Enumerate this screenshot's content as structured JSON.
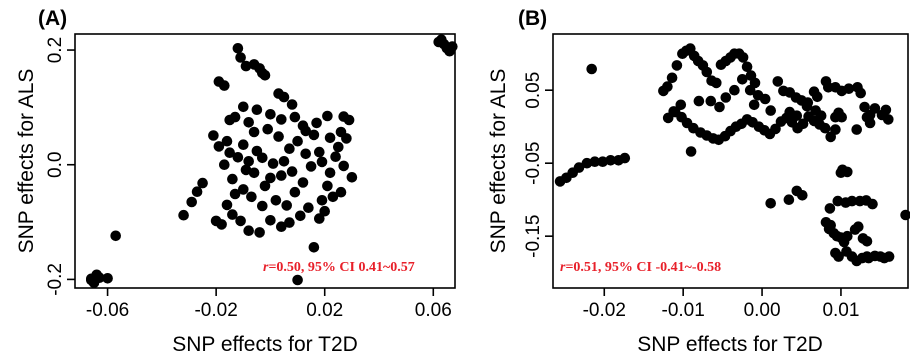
{
  "chart_data": [
    {
      "type": "scatter",
      "panel": "(A)",
      "xlabel": "SNP effects for T2D",
      "ylabel": "SNP effects for ALS",
      "xlim": [
        -0.072,
        0.068
      ],
      "ylim": [
        -0.215,
        0.228
      ],
      "xticks": [
        -0.06,
        -0.02,
        0.02,
        0.06
      ],
      "xtick_labels": [
        "-0.06",
        "-0.02",
        "0.02",
        "0.06"
      ],
      "yticks": [
        -0.2,
        0.0,
        0.2
      ],
      "ytick_labels": [
        "-0.2",
        "0.0",
        "0.2"
      ],
      "annotation": {
        "italic": "r",
        "rest": "=0.50, 95% CI 0.41~0.57",
        "color": "#e8202a"
      },
      "series": [
        {
          "color": "#000000",
          "points": [
            [
              -0.066,
              -0.199
            ],
            [
              -0.065,
              -0.206
            ],
            [
              -0.064,
              -0.192
            ],
            [
              -0.066,
              -0.201
            ],
            [
              -0.063,
              -0.197
            ],
            [
              -0.06,
              -0.198
            ],
            [
              -0.057,
              -0.124
            ],
            [
              -0.032,
              -0.088
            ],
            [
              -0.029,
              -0.065
            ],
            [
              -0.027,
              -0.047
            ],
            [
              -0.025,
              -0.032
            ],
            [
              -0.02,
              -0.098
            ],
            [
              -0.018,
              -0.104
            ],
            [
              -0.016,
              -0.07
            ],
            [
              -0.012,
              0.203
            ],
            [
              -0.011,
              0.187
            ],
            [
              -0.009,
              0.172
            ],
            [
              -0.006,
              0.175
            ],
            [
              -0.004,
              0.168
            ],
            [
              -0.003,
              0.16
            ],
            [
              -0.002,
              0.156
            ],
            [
              -0.019,
              0.145
            ],
            [
              -0.017,
              0.138
            ],
            [
              0.003,
              0.124
            ],
            [
              0.005,
              0.118
            ],
            [
              0.008,
              0.105
            ],
            [
              -0.01,
              0.101
            ],
            [
              -0.005,
              0.096
            ],
            [
              -0.015,
              0.078
            ],
            [
              -0.013,
              0.083
            ],
            [
              -0.008,
              0.074
            ],
            [
              0.0,
              0.088
            ],
            [
              0.004,
              0.079
            ],
            [
              0.009,
              0.083
            ],
            [
              0.012,
              0.068
            ],
            [
              0.017,
              0.073
            ],
            [
              0.021,
              0.085
            ],
            [
              0.027,
              0.084
            ],
            [
              0.029,
              0.078
            ],
            [
              0.026,
              0.057
            ],
            [
              0.028,
              0.046
            ],
            [
              0.025,
              0.031
            ],
            [
              0.024,
              0.014
            ],
            [
              0.027,
              -0.002
            ],
            [
              0.03,
              -0.022
            ],
            [
              0.026,
              -0.048
            ],
            [
              0.021,
              -0.037
            ],
            [
              0.019,
              -0.062
            ],
            [
              0.018,
              -0.094
            ],
            [
              0.016,
              -0.144
            ],
            [
              0.01,
              -0.201
            ],
            [
              0.004,
              -0.108
            ],
            [
              0.0,
              -0.097
            ],
            [
              -0.004,
              -0.118
            ],
            [
              -0.008,
              -0.115
            ],
            [
              -0.011,
              -0.098
            ],
            [
              -0.014,
              -0.087
            ],
            [
              -0.013,
              -0.051
            ],
            [
              -0.019,
              0.032
            ],
            [
              -0.021,
              0.051
            ],
            [
              -0.016,
              0.041
            ],
            [
              -0.009,
              -0.009
            ],
            [
              -0.006,
              -0.014
            ],
            [
              -0.003,
              0.012
            ],
            [
              0.001,
              0.002
            ],
            [
              0.004,
              -0.019
            ],
            [
              0.007,
              0.028
            ],
            [
              0.01,
              0.041
            ],
            [
              0.013,
              0.019
            ],
            [
              0.015,
              -0.003
            ],
            [
              0.018,
              0.022
            ],
            [
              -0.012,
              0.013
            ],
            [
              -0.017,
              0.0
            ],
            [
              -0.014,
              -0.025
            ],
            [
              -0.01,
              -0.043
            ],
            [
              -0.007,
              -0.056
            ],
            [
              -0.002,
              -0.037
            ],
            [
              0.002,
              -0.062
            ],
            [
              0.006,
              -0.071
            ],
            [
              0.009,
              -0.048
            ],
            [
              0.012,
              -0.031
            ],
            [
              0.014,
              -0.075
            ],
            [
              0.011,
              -0.089
            ],
            [
              0.007,
              -0.101
            ],
            [
              -0.001,
              0.062
            ],
            [
              0.003,
              0.049
            ],
            [
              -0.006,
              0.057
            ],
            [
              -0.01,
              0.035
            ],
            [
              0.016,
              0.052
            ],
            [
              0.019,
              0.005
            ],
            [
              0.022,
              -0.014
            ],
            [
              -0.005,
              0.024
            ],
            [
              0.0,
              -0.023
            ],
            [
              0.005,
              0.006
            ],
            [
              -0.008,
              0.006
            ],
            [
              0.008,
              -0.012
            ],
            [
              -0.003,
              -0.072
            ],
            [
              0.013,
              0.059
            ],
            [
              0.02,
              -0.081
            ],
            [
              -0.015,
              0.021
            ],
            [
              0.022,
              0.047
            ],
            [
              0.023,
              -0.056
            ],
            [
              0.063,
              0.218
            ],
            [
              0.064,
              0.21
            ],
            [
              0.065,
              0.203
            ],
            [
              0.062,
              0.214
            ],
            [
              0.066,
              0.198
            ],
            [
              0.067,
              0.206
            ]
          ]
        }
      ]
    },
    {
      "type": "scatter",
      "panel": "(B)",
      "xlabel": "SNP effects for T2D",
      "ylabel": "SNP effects for ALS",
      "xlim": [
        -0.0265,
        0.0185
      ],
      "ylim": [
        -0.221,
        0.127
      ],
      "xticks": [
        -0.02,
        -0.01,
        0.0,
        0.01
      ],
      "xtick_labels": [
        "-0.02",
        "-0.01",
        "0.00",
        "0.01"
      ],
      "yticks": [
        -0.15,
        -0.05,
        0.05
      ],
      "ytick_labels": [
        "-0.15",
        "-0.05",
        "0.05"
      ],
      "annotation": {
        "italic": "r",
        "rest": "=0.51, 95% CI -0.41~-0.58",
        "color": "#e8202a"
      },
      "series": [
        {
          "color": "#000000",
          "points": [
            [
              -0.0256,
              -0.075
            ],
            [
              -0.0248,
              -0.07
            ],
            [
              -0.024,
              -0.063
            ],
            [
              -0.0232,
              -0.056
            ],
            [
              -0.0222,
              -0.05
            ],
            [
              -0.0212,
              -0.048
            ],
            [
              -0.0202,
              -0.048
            ],
            [
              -0.0192,
              -0.046
            ],
            [
              -0.0182,
              -0.046
            ],
            [
              -0.0174,
              -0.043
            ],
            [
              -0.0216,
              0.079
            ],
            [
              -0.0125,
              0.049
            ],
            [
              -0.012,
              0.055
            ],
            [
              -0.0114,
              0.067
            ],
            [
              -0.0108,
              0.084
            ],
            [
              -0.0101,
              0.1
            ],
            [
              -0.0096,
              0.104
            ],
            [
              -0.0091,
              0.107
            ],
            [
              -0.0086,
              0.097
            ],
            [
              -0.0081,
              0.09
            ],
            [
              -0.0075,
              0.084
            ],
            [
              -0.007,
              0.075
            ],
            [
              -0.0064,
              0.063
            ],
            [
              -0.0058,
              0.06
            ],
            [
              -0.0052,
              0.085
            ],
            [
              -0.0046,
              0.09
            ],
            [
              -0.004,
              0.095
            ],
            [
              -0.0035,
              0.1
            ],
            [
              -0.0029,
              0.1
            ],
            [
              -0.0024,
              0.095
            ],
            [
              -0.0019,
              0.082
            ],
            [
              -0.0014,
              0.07
            ],
            [
              -0.0009,
              0.06
            ],
            [
              -0.011,
              0.02
            ],
            [
              -0.0102,
              0.013
            ],
            [
              -0.0095,
              0.005
            ],
            [
              -0.0087,
              -0.002
            ],
            [
              -0.0078,
              -0.008
            ],
            [
              -0.007,
              -0.012
            ],
            [
              -0.0062,
              -0.016
            ],
            [
              -0.0055,
              -0.018
            ],
            [
              -0.0047,
              -0.013
            ],
            [
              -0.004,
              -0.006
            ],
            [
              -0.0033,
              0.0
            ],
            [
              -0.0026,
              0.004
            ],
            [
              -0.0019,
              0.01
            ],
            [
              -0.0012,
              0.006
            ],
            [
              -0.0004,
              0.0
            ],
            [
              0.0003,
              -0.005
            ],
            [
              0.001,
              -0.01
            ],
            [
              0.0017,
              -0.003
            ],
            [
              0.0024,
              0.007
            ],
            [
              0.0031,
              0.012
            ],
            [
              0.0038,
              0.006
            ],
            [
              0.0045,
              -0.002
            ],
            [
              0.0052,
              0.004
            ],
            [
              0.0059,
              0.014
            ],
            [
              0.0066,
              0.008
            ],
            [
              0.0073,
              0.003
            ],
            [
              0.008,
              -0.002
            ],
            [
              0.0087,
              -0.014
            ],
            [
              0.0093,
              -0.004
            ],
            [
              -0.0119,
              0.012
            ],
            [
              -0.0112,
              0.021
            ],
            [
              -0.009,
              -0.034
            ],
            [
              -0.0005,
              0.043
            ],
            [
              0.0004,
              0.038
            ],
            [
              0.0011,
              0.022
            ],
            [
              0.002,
              0.062
            ],
            [
              0.0027,
              0.049
            ],
            [
              0.0035,
              0.047
            ],
            [
              0.0043,
              0.04
            ],
            [
              0.005,
              0.036
            ],
            [
              0.0058,
              0.033
            ],
            [
              0.0066,
              0.048
            ],
            [
              0.007,
              0.041
            ],
            [
              0.0084,
              0.054
            ],
            [
              0.0093,
              0.054
            ],
            [
              0.0101,
              0.049
            ],
            [
              0.011,
              0.052
            ],
            [
              0.0121,
              0.054
            ],
            [
              0.0125,
              0.046
            ],
            [
              0.013,
              0.027
            ],
            [
              0.0137,
              0.016
            ],
            [
              0.0143,
              0.025
            ],
            [
              0.0152,
              0.016
            ],
            [
              0.0157,
              0.023
            ],
            [
              0.016,
              0.01
            ],
            [
              0.0133,
              0.013
            ],
            [
              0.0137,
              0.005
            ],
            [
              0.012,
              -0.004
            ],
            [
              0.0097,
              0.019
            ],
            [
              0.0101,
              0.013
            ],
            [
              0.0093,
              0.013
            ],
            [
              0.0081,
              0.062
            ],
            [
              0.0075,
              0.015
            ],
            [
              0.0068,
              0.022
            ],
            [
              0.0057,
              0.028
            ],
            [
              0.0044,
              0.015
            ],
            [
              0.0035,
              0.02
            ],
            [
              -0.0065,
              0.035
            ],
            [
              -0.0054,
              0.027
            ],
            [
              -0.0046,
              0.04
            ],
            [
              -0.0035,
              0.05
            ],
            [
              -0.0025,
              0.065
            ],
            [
              -0.0015,
              0.05
            ],
            [
              -0.001,
              0.03
            ],
            [
              -0.008,
              0.035
            ],
            [
              -0.0103,
              0.03
            ],
            [
              0.0102,
              -0.059
            ],
            [
              0.0108,
              -0.062
            ],
            [
              0.01,
              -0.063
            ],
            [
              0.0044,
              -0.088
            ],
            [
              0.0051,
              -0.094
            ],
            [
              0.0034,
              -0.1
            ],
            [
              0.0011,
              -0.105
            ],
            [
              0.0086,
              -0.112
            ],
            [
              0.0096,
              -0.102
            ],
            [
              0.0106,
              -0.104
            ],
            [
              0.0114,
              -0.102
            ],
            [
              0.0124,
              -0.102
            ],
            [
              0.0132,
              -0.101
            ],
            [
              0.014,
              -0.106
            ],
            [
              0.0081,
              -0.131
            ],
            [
              0.0087,
              -0.135
            ],
            [
              0.0085,
              -0.14
            ],
            [
              0.0091,
              -0.146
            ],
            [
              0.0095,
              -0.15
            ],
            [
              0.01,
              -0.152
            ],
            [
              0.0104,
              -0.158
            ],
            [
              0.0108,
              -0.15
            ],
            [
              0.0118,
              -0.141
            ],
            [
              0.0122,
              -0.137
            ],
            [
              0.0128,
              -0.153
            ],
            [
              0.0133,
              -0.157
            ],
            [
              0.0107,
              -0.171
            ],
            [
              0.0114,
              -0.178
            ],
            [
              0.012,
              -0.184
            ],
            [
              0.0127,
              -0.18
            ],
            [
              0.0135,
              -0.18
            ],
            [
              0.0143,
              -0.177
            ],
            [
              0.015,
              -0.178
            ],
            [
              0.0155,
              -0.18
            ],
            [
              0.0161,
              -0.178
            ],
            [
              0.0093,
              -0.173
            ],
            [
              0.0097,
              -0.178
            ],
            [
              0.0133,
              -0.178
            ],
            [
              0.0182,
              -0.121
            ]
          ]
        }
      ]
    }
  ]
}
